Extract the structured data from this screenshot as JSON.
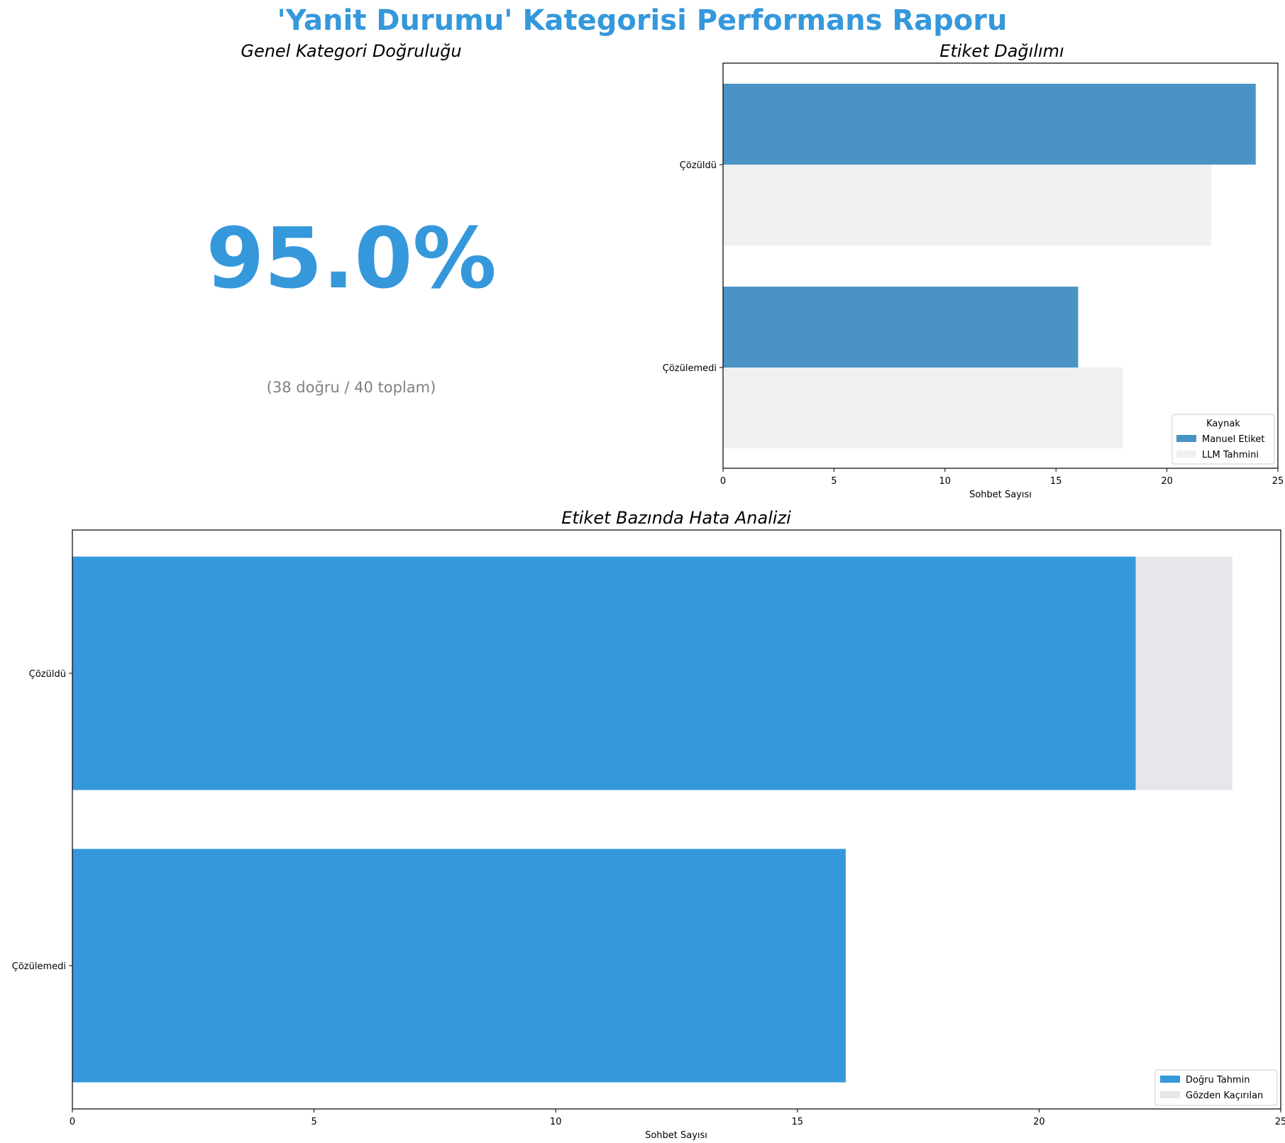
{
  "title": "'Yanit Durumu' Kategorisi Performans Raporu",
  "colors": {
    "accent": "#3598DB",
    "manuel": "#4A93C5",
    "llm": "#EFF0F2",
    "dogru": "#3598DB",
    "gozden": "#E5E7EA",
    "subtext": "#808080"
  },
  "kpi": {
    "title": "Genel Kategori Doğruluğu",
    "value": "95.0%",
    "detail": "(38 doğru / 40 toplam)"
  },
  "chart_data": [
    {
      "type": "bar",
      "orientation": "horizontal",
      "title": "Etiket Dağılımı",
      "xlabel": "Sohbet Sayısı",
      "ylabel": "",
      "categories": [
        "Çözüldü",
        "Çözülemedi"
      ],
      "series": [
        {
          "name": "Manuel Etiket",
          "values": [
            24,
            16
          ]
        },
        {
          "name": "LLM Tahmini",
          "values": [
            22,
            18
          ]
        }
      ],
      "xlim": [
        0,
        25
      ],
      "xticks": [
        0,
        5,
        10,
        15,
        20,
        25
      ],
      "legend": {
        "title": "Kaynak",
        "position": "lower-right"
      },
      "grid": false
    },
    {
      "type": "bar",
      "orientation": "horizontal",
      "stacked": true,
      "title": "Etiket Bazında Hata Analizi",
      "xlabel": "Sohbet Sayısı",
      "ylabel": "",
      "categories": [
        "Çözüldü",
        "Çözülemedi"
      ],
      "series": [
        {
          "name": "Doğru Tahmin",
          "values": [
            22,
            16
          ]
        },
        {
          "name": "Gözden Kaçırılan",
          "values": [
            2,
            0
          ]
        }
      ],
      "xlim": [
        0,
        25
      ],
      "xticks": [
        0,
        5,
        10,
        15,
        20,
        25
      ],
      "legend": {
        "position": "lower-right"
      },
      "grid": false
    }
  ]
}
